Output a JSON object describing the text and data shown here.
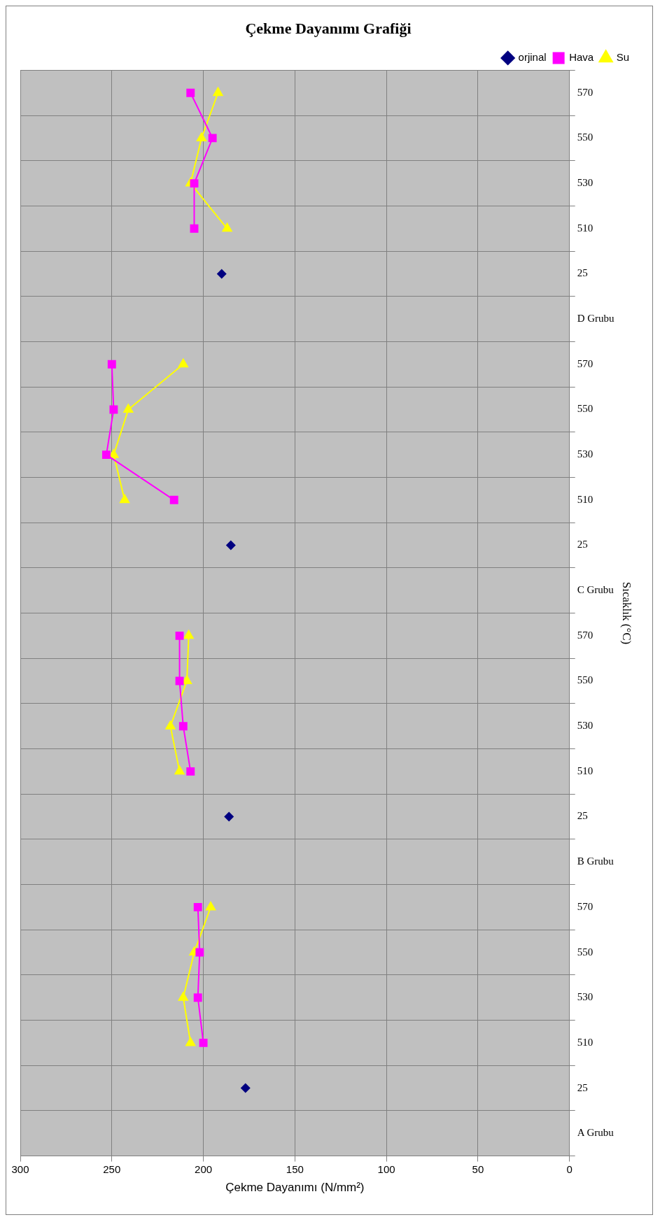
{
  "chart_data": {
    "type": "line",
    "orientation": "horizontal",
    "title": "Çekme Dayanımı Grafiği",
    "xlabel": "Çekme Dayanımı (N/mm²)",
    "ylabel": "Sıcaklık (°C)",
    "categories": [
      "570",
      "550",
      "530",
      "510",
      "25",
      "D Grubu",
      "570",
      "550",
      "530",
      "510",
      "25",
      "C Grubu",
      "570",
      "550",
      "530",
      "510",
      "25",
      "B Grubu",
      "570",
      "550",
      "530",
      "510",
      "25",
      "A Grubu"
    ],
    "series": [
      {
        "name": "orjinal",
        "type": "scatter",
        "color": "#000080",
        "marker": "diamond",
        "values": [
          null,
          null,
          null,
          null,
          190,
          null,
          null,
          null,
          null,
          null,
          185,
          null,
          null,
          null,
          null,
          null,
          186,
          null,
          null,
          null,
          null,
          null,
          177,
          null
        ]
      },
      {
        "name": "Hava",
        "color": "#ff00ff",
        "marker": "square",
        "values": [
          207,
          195,
          205,
          205,
          null,
          null,
          250,
          249,
          253,
          216,
          null,
          null,
          213,
          213,
          211,
          207,
          null,
          null,
          203,
          202,
          203,
          200,
          null,
          null
        ]
      },
      {
        "name": "Su",
        "color": "#ffff00",
        "marker": "triangle",
        "values": [
          192,
          201,
          207,
          187,
          null,
          null,
          211,
          241,
          249,
          243,
          null,
          null,
          208,
          209,
          218,
          213,
          null,
          null,
          196,
          205,
          211,
          207,
          null,
          null
        ]
      }
    ],
    "xlim": [
      300,
      0
    ],
    "xticks": [
      0,
      50,
      100,
      150,
      200,
      250,
      300
    ],
    "grid": true,
    "legend": "top right"
  }
}
